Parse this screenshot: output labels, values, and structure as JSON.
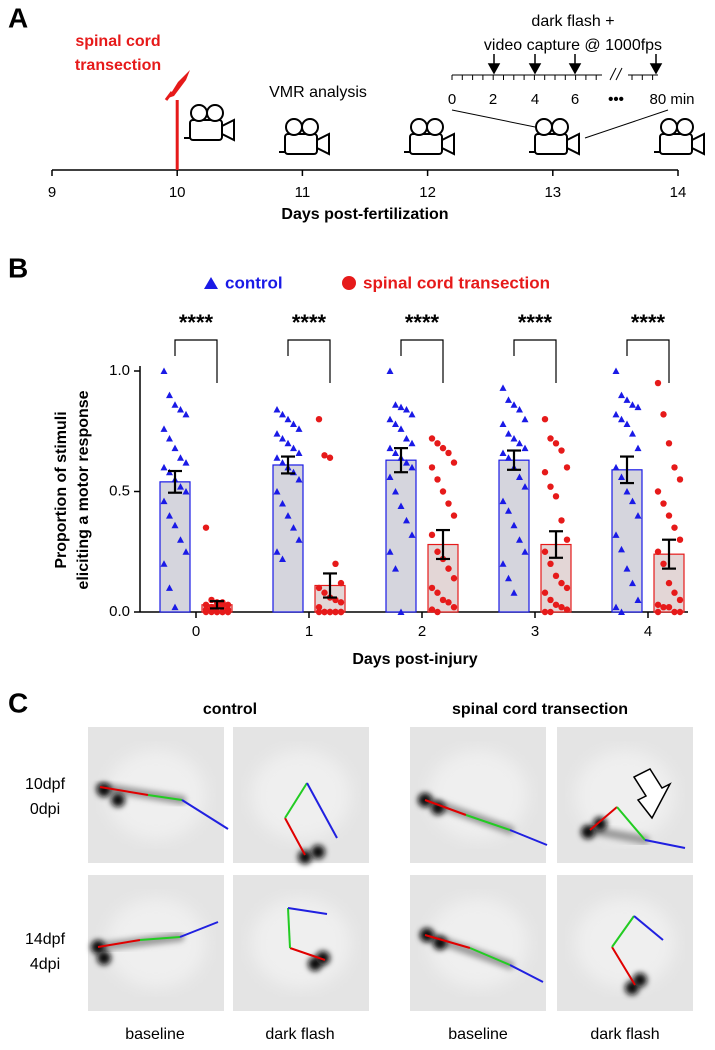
{
  "panel_a": {
    "label": "A",
    "lesion_label": [
      "spinal cord",
      "transection"
    ],
    "analysis_label": "VMR analysis",
    "inset_title": [
      "dark flash +",
      "video capture @ 1000fps"
    ],
    "inset_ticks": [
      "0",
      "2",
      "4",
      "6"
    ],
    "inset_ellipsis": "•••",
    "inset_end": "80 min",
    "xlim": [
      9,
      14
    ],
    "xticks": [
      9,
      10,
      11,
      12,
      13,
      14
    ],
    "x_label": "Days post-fertilization",
    "lesion_day": 10
  },
  "chart_data": {
    "type": "bar",
    "panel_label": "B",
    "y_label": [
      "Proportion of stimuli",
      "eliciting a motor response"
    ],
    "x_label": "Days post-injury",
    "categories": [
      "0",
      "1",
      "2",
      "3",
      "4"
    ],
    "ylim": [
      0,
      1
    ],
    "yticks": [
      {
        "value": 0,
        "label": "0.0"
      },
      0.5,
      {
        "value": 1,
        "label": "1.0"
      }
    ],
    "significance": [
      "****",
      "****",
      "****",
      "****",
      "****"
    ],
    "series": [
      {
        "name": "control",
        "color": "#1a1ae6",
        "bar_fill": "#d5d5dd",
        "marker": "triangle",
        "values": [
          0.54,
          0.61,
          0.63,
          0.63,
          0.59
        ],
        "errors": [
          0.045,
          0.035,
          0.05,
          0.04,
          0.055
        ],
        "points": [
          [
            1.0,
            0.9,
            0.86,
            0.84,
            0.82,
            0.76,
            0.72,
            0.68,
            0.64,
            0.62,
            0.6,
            0.58,
            0.55,
            0.52,
            0.5,
            0.46,
            0.4,
            0.36,
            0.3,
            0.25,
            0.2,
            0.1,
            0.02
          ],
          [
            0.84,
            0.82,
            0.8,
            0.78,
            0.76,
            0.74,
            0.72,
            0.7,
            0.68,
            0.66,
            0.64,
            0.62,
            0.6,
            0.58,
            0.55,
            0.5,
            0.45,
            0.4,
            0.35,
            0.3,
            0.25,
            0.22
          ],
          [
            1.0,
            0.86,
            0.85,
            0.84,
            0.82,
            0.8,
            0.78,
            0.76,
            0.72,
            0.7,
            0.68,
            0.66,
            0.64,
            0.62,
            0.6,
            0.56,
            0.5,
            0.44,
            0.38,
            0.32,
            0.25,
            0.18,
            0
          ],
          [
            0.93,
            0.88,
            0.86,
            0.84,
            0.8,
            0.78,
            0.74,
            0.72,
            0.7,
            0.68,
            0.66,
            0.64,
            0.6,
            0.56,
            0.52,
            0.46,
            0.42,
            0.36,
            0.3,
            0.25,
            0.2,
            0.14,
            0.08
          ],
          [
            1.0,
            0.9,
            0.88,
            0.86,
            0.85,
            0.82,
            0.8,
            0.78,
            0.74,
            0.68,
            0.6,
            0.56,
            0.5,
            0.46,
            0.4,
            0.32,
            0.26,
            0.18,
            0.12,
            0.05,
            0.02,
            0
          ]
        ]
      },
      {
        "name": "spinal cord transection",
        "color": "#e61a1a",
        "bar_fill": "#e3d6d6",
        "marker": "circle",
        "values": [
          0.03,
          0.11,
          0.28,
          0.28,
          0.24
        ],
        "errors": [
          0.015,
          0.05,
          0.06,
          0.055,
          0.06
        ],
        "points": [
          [
            0.35,
            0.05,
            0.04,
            0.04,
            0.03,
            0.03,
            0.02,
            0.02,
            0.02,
            0.01,
            0.01,
            0.01,
            0,
            0,
            0,
            0,
            0,
            0,
            0,
            0
          ],
          [
            0.8,
            0.65,
            0.64,
            0.2,
            0.12,
            0.1,
            0.08,
            0.06,
            0.05,
            0.04,
            0.02,
            0,
            0,
            0,
            0,
            0,
            0,
            0,
            0,
            0
          ],
          [
            0.72,
            0.7,
            0.68,
            0.66,
            0.62,
            0.6,
            0.55,
            0.5,
            0.45,
            0.4,
            0.32,
            0.25,
            0.22,
            0.18,
            0.14,
            0.1,
            0.08,
            0.05,
            0.04,
            0.02,
            0.01,
            0
          ],
          [
            0.8,
            0.72,
            0.7,
            0.67,
            0.6,
            0.58,
            0.52,
            0.48,
            0.38,
            0.3,
            0.25,
            0.2,
            0.15,
            0.12,
            0.1,
            0.08,
            0.05,
            0.03,
            0.02,
            0.01,
            0,
            0
          ],
          [
            0.95,
            0.82,
            0.7,
            0.6,
            0.55,
            0.5,
            0.45,
            0.4,
            0.35,
            0.3,
            0.25,
            0.2,
            0.12,
            0.08,
            0.05,
            0.03,
            0.02,
            0.02,
            0,
            0,
            0
          ]
        ]
      }
    ]
  },
  "panel_c": {
    "label": "C",
    "groups": [
      "control",
      "spinal cord transection"
    ],
    "rows": [
      [
        "10dpf",
        "0dpi"
      ],
      [
        "14dpf",
        "4dpi"
      ]
    ],
    "columns": [
      "baseline",
      "dark flash",
      "baseline",
      "dark flash"
    ]
  }
}
